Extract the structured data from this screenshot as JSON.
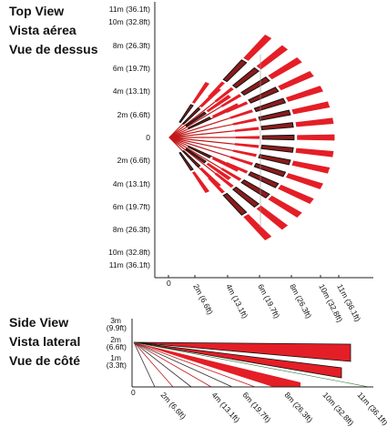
{
  "top_view": {
    "labels": [
      "Top View",
      "Vista aérea",
      "Vue de dessus"
    ],
    "y_labels": [
      "11m (36.1ft)",
      "10m (32.8ft)",
      "8m (26.3ft)",
      "6m (19.7ft)",
      "4m (13.1ft)",
      "2m (6.6ft)",
      "0",
      "2m (6.6ft)",
      "4m (13.1ft)",
      "6m (19.7ft)",
      "8m (26.3ft)",
      "10m (32.8ft)",
      "11m (36.1ft)"
    ],
    "x_labels": [
      "0",
      "2m (6.6ft)",
      "4m (13.1ft)",
      "6m (19.7ft)",
      "8m (26.3ft)",
      "10m (32.8ft)",
      "11m (36.1ft)"
    ]
  },
  "side_view": {
    "labels": [
      "Side View",
      "Vista lateral",
      "Vue de côté"
    ],
    "y_labels": [
      {
        "m": "3m",
        "ft": "(9.9ft)"
      },
      {
        "m": "2m",
        "ft": "(6.6ft)"
      },
      {
        "m": "1m",
        "ft": "(3.3ft)"
      }
    ],
    "x_labels": [
      "0",
      "2m (6.6ft)",
      "4m (13.1ft)",
      "6m (19.7ft)",
      "8m (26.3ft)",
      "10m (32.8ft)",
      "11m (36.1ft)"
    ]
  }
}
